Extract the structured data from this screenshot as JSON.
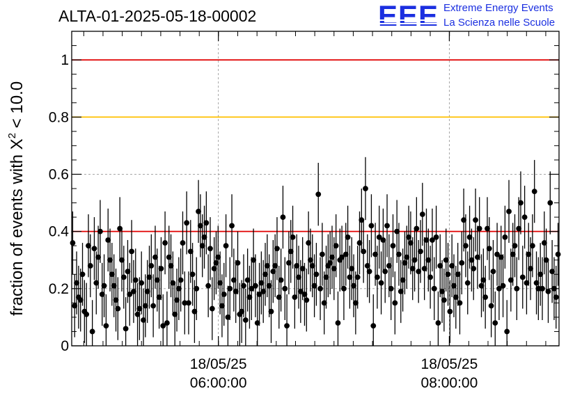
{
  "header": {
    "run_id": "ALTA-01-2025-05-18-00002",
    "logo_mark": "EEE",
    "logo_line1": "Extreme Energy Events",
    "logo_line2": "La Scienza nelle Scuole"
  },
  "colors": {
    "accent": "#1b2fe0",
    "threshold_red": "#e00000",
    "threshold_yellow": "#ffc000",
    "grid": "#9a9a9a",
    "points": "#000000"
  },
  "chart_data": {
    "type": "scatter",
    "title": "ALTA-01-2025-05-18-00002",
    "xlabel": "",
    "ylabel_prefix": "fraction of events with ",
    "ylabel_symbol": "X",
    "ylabel_exponent": "2",
    "ylabel_suffix": " < 10.0",
    "ylim": [
      0,
      1.1
    ],
    "yticks": [
      {
        "value": 0,
        "label": "0"
      },
      {
        "value": 0.2,
        "label": "0.2"
      },
      {
        "value": 0.4,
        "label": "0.4"
      },
      {
        "value": 0.6,
        "label": "0.6"
      },
      {
        "value": 0.8,
        "label": "0.8"
      },
      {
        "value": 1,
        "label": "1"
      }
    ],
    "xlim_hours": [
      4.73,
      8.95
    ],
    "xticks": [
      {
        "value": 6.0,
        "date": "18/05/25",
        "time": "06:00:00"
      },
      {
        "value": 8.0,
        "date": "18/05/25",
        "time": "08:00:00"
      }
    ],
    "minor_x_step_hours": 0.1667,
    "grid": true,
    "thresholds": [
      {
        "value": 1.0,
        "color": "#e00000"
      },
      {
        "value": 0.8,
        "color": "#ffc000"
      },
      {
        "value": 0.4,
        "color": "#e00000"
      }
    ],
    "n_points": 240,
    "mean": 0.26,
    "error": 0.11,
    "y": [
      0.36,
      0.14,
      0.22,
      0.17,
      0.16,
      0.25,
      0.12,
      0.11,
      0.35,
      0.28,
      0.05,
      0.34,
      0.22,
      0.31,
      0.4,
      0.18,
      0.21,
      0.07,
      0.37,
      0.3,
      0.25,
      0.21,
      0.16,
      0.13,
      0.41,
      0.3,
      0.24,
      0.06,
      0.26,
      0.18,
      0.33,
      0.19,
      0.23,
      0.11,
      0.13,
      0.22,
      0.09,
      0.14,
      0.19,
      0.24,
      0.28,
      0.14,
      0.31,
      0.23,
      0.17,
      0.27,
      0.07,
      0.36,
      0.08,
      0.31,
      0.28,
      0.22,
      0.11,
      0.16,
      0.2,
      0.23,
      0.36,
      0.15,
      0.43,
      0.15,
      0.33,
      0.25,
      0.12,
      0.2,
      0.47,
      0.42,
      0.35,
      0.38,
      0.43,
      0.21,
      0.34,
      0.13,
      0.27,
      0.29,
      0.31,
      0.22,
      0.14,
      0.18,
      0.35,
      0.1,
      0.2,
      0.42,
      0.23,
      0.19,
      0.29,
      0.11,
      0.12,
      0.21,
      0.09,
      0.23,
      0.17,
      0.2,
      0.3,
      0.21,
      0.08,
      0.18,
      0.22,
      0.19,
      0.25,
      0.28,
      0.21,
      0.12,
      0.26,
      0.28,
      0.34,
      0.17,
      0.23,
      0.45,
      0.2,
      0.07,
      0.29,
      0.33,
      0.38,
      0.17,
      0.28,
      0.24,
      0.19,
      0.27,
      0.18,
      0.16,
      0.36,
      0.3,
      0.28,
      0.21,
      0.25,
      0.53,
      0.2,
      0.32,
      0.15,
      0.24,
      0.28,
      0.29,
      0.31,
      0.27,
      0.35,
      0.08,
      0.3,
      0.31,
      0.2,
      0.32,
      0.38,
      0.24,
      0.27,
      0.21,
      0.15,
      0.24,
      0.36,
      0.44,
      0.33,
      0.55,
      0.28,
      0.26,
      0.42,
      0.07,
      0.32,
      0.24,
      0.38,
      0.22,
      0.37,
      0.26,
      0.42,
      0.28,
      0.2,
      0.35,
      0.15,
      0.4,
      0.32,
      0.19,
      0.23,
      0.29,
      0.31,
      0.38,
      0.36,
      0.27,
      0.3,
      0.41,
      0.26,
      0.33,
      0.46,
      0.27,
      0.37,
      0.3,
      0.24,
      0.37,
      0.2,
      0.38,
      0.08,
      0.28,
      0.19,
      0.16,
      0.3,
      0.25,
      0.12,
      0.28,
      0.21,
      0.17,
      0.25,
      0.15,
      0.29,
      0.44,
      0.35,
      0.22,
      0.38,
      0.3,
      0.27,
      0.44,
      0.31,
      0.41,
      0.21,
      0.23,
      0.17,
      0.41,
      0.34,
      0.14,
      0.26,
      0.08,
      0.32,
      0.2,
      0.31,
      0.21,
      0.38,
      0.05,
      0.47,
      0.23,
      0.32,
      0.35,
      0.2,
      0.41,
      0.5,
      0.24,
      0.45,
      0.22,
      0.32,
      0.27,
      0.35,
      0.54,
      0.22,
      0.2,
      0.25,
      0.2,
      0.36,
      0.3,
      0.19,
      0.5,
      0.26,
      0.2,
      0.17,
      0.32
    ]
  }
}
